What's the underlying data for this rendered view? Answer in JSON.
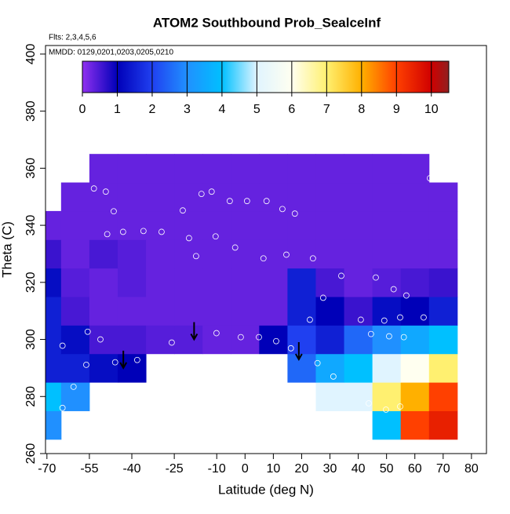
{
  "chart_data": {
    "type": "heatmap",
    "title": "ATOM2 Southbound Prob_SealceInf",
    "annotations": [
      "Flts: 2,3,4,5,6",
      "MMDD: 0129,0201,0203,0205,0210"
    ],
    "xlabel": "Latitude (deg N)",
    "ylabel": "Theta (C)",
    "xlim": [
      -70.5,
      85.3
    ],
    "xticks": [
      -70,
      -55,
      -40,
      -25,
      -10,
      0,
      10,
      20,
      30,
      40,
      50,
      60,
      70,
      80
    ],
    "ylim": [
      260,
      403
    ],
    "yticks": [
      260,
      280,
      300,
      320,
      340,
      360,
      380,
      400
    ],
    "colorbar": {
      "lim": [
        0,
        10.5
      ],
      "ticks": [
        0,
        1,
        2,
        3,
        4,
        5,
        6,
        7,
        8,
        9,
        10
      ],
      "colors": [
        "#9030f0",
        "#0000b8",
        "#2040f0",
        "#2090ff",
        "#00c0ff",
        "#e0f4ff",
        "#fffff0",
        "#fff070",
        "#ffb000",
        "#ff4000",
        "#d00000",
        "#902020"
      ]
    },
    "x": [
      -70,
      -60,
      -50,
      -40,
      -30,
      -20,
      -10,
      0,
      10,
      20,
      30,
      40,
      50,
      60,
      70
    ],
    "y": [
      270,
      280,
      290,
      300,
      310,
      320,
      330,
      340,
      350,
      360
    ],
    "z": [
      [
        3,
        null,
        null,
        null,
        null,
        null,
        null,
        null,
        null,
        null,
        null,
        null,
        4,
        9,
        9.5
      ],
      [
        4,
        3,
        null,
        null,
        null,
        null,
        null,
        null,
        null,
        null,
        5,
        5,
        7,
        8,
        9
      ],
      [
        1.5,
        1.5,
        1.2,
        1,
        null,
        null,
        null,
        null,
        null,
        2.5,
        3.5,
        4,
        5,
        6,
        7
      ],
      [
        1.5,
        1.2,
        0.5,
        0.5,
        0.4,
        0.4,
        0.3,
        0.3,
        1,
        2,
        1.5,
        2.5,
        3,
        3.5,
        4
      ],
      [
        1.5,
        0.5,
        0.3,
        0.3,
        0.3,
        0.3,
        0.3,
        0.3,
        0.3,
        1.5,
        1,
        0.6,
        1.2,
        1,
        1.5
      ],
      [
        1.2,
        0.4,
        0.3,
        0.4,
        0.3,
        0.3,
        0.3,
        0.3,
        0.3,
        1.5,
        0.5,
        0.3,
        0.4,
        0.5,
        0.6
      ],
      [
        0.6,
        0.3,
        0.5,
        0.4,
        0.3,
        0.3,
        0.3,
        0.3,
        0.3,
        0.3,
        0.3,
        0.3,
        0.3,
        0.3,
        0.3
      ],
      [
        0.3,
        0.3,
        0.3,
        0.3,
        0.3,
        0.3,
        0.3,
        0.3,
        0.3,
        0.3,
        0.3,
        0.3,
        0.3,
        0.3,
        0.3
      ],
      [
        null,
        0.3,
        0.3,
        0.3,
        0.3,
        0.3,
        0.3,
        0.3,
        0.3,
        0.3,
        0.3,
        0.3,
        0.3,
        0.3,
        0.3
      ],
      [
        null,
        null,
        0.3,
        0.3,
        0.3,
        0.3,
        0.3,
        0.3,
        0.3,
        0.3,
        0.3,
        0.3,
        0.3,
        0.3,
        null
      ]
    ],
    "points": {
      "x": [
        -53.4,
        -49.2,
        -46.4,
        -48.7,
        -43.1,
        -35.9,
        -29.5,
        -19.8,
        -22,
        -15.4,
        -11.8,
        -5.4,
        0.7,
        7.6,
        13.2,
        17.6,
        -17.3,
        -10.4,
        -3.5,
        6.5,
        14.6,
        24,
        34,
        46.2,
        52.5,
        57,
        65.3,
        27.6,
        40.9,
        49.2,
        54.8,
        63.1,
        50.9,
        56.1,
        44.5,
        22.9,
        -51.1,
        -55.6,
        -64.5,
        -56.1,
        -45.9,
        -38.1,
        -25.9,
        -10.1,
        -1.5,
        4.9,
        11,
        16.2,
        25.6,
        31.2,
        43.7,
        49.8,
        54.8,
        -64.5,
        -60.6
      ],
      "y": [
        352.9,
        351.8,
        344.9,
        336.9,
        337.7,
        338,
        337.7,
        335.5,
        345.2,
        351,
        351.8,
        348.5,
        348.5,
        348.5,
        345.7,
        344.1,
        329.2,
        336.1,
        332.2,
        328.4,
        329.7,
        328.4,
        322.3,
        321.7,
        317.6,
        315.4,
        356.5,
        314.6,
        306.9,
        306.6,
        307.7,
        307.7,
        301.1,
        300.8,
        301.9,
        306.9,
        300,
        302.7,
        297.8,
        291.1,
        292,
        292.8,
        298.9,
        302.2,
        300.8,
        300.8,
        299.4,
        296.9,
        291.7,
        287,
        277.6,
        275.4,
        276.5,
        276,
        283.4
      ]
    },
    "arrows": {
      "x": [
        -43,
        -18,
        19
      ],
      "y": [
        290,
        300,
        293
      ]
    }
  }
}
